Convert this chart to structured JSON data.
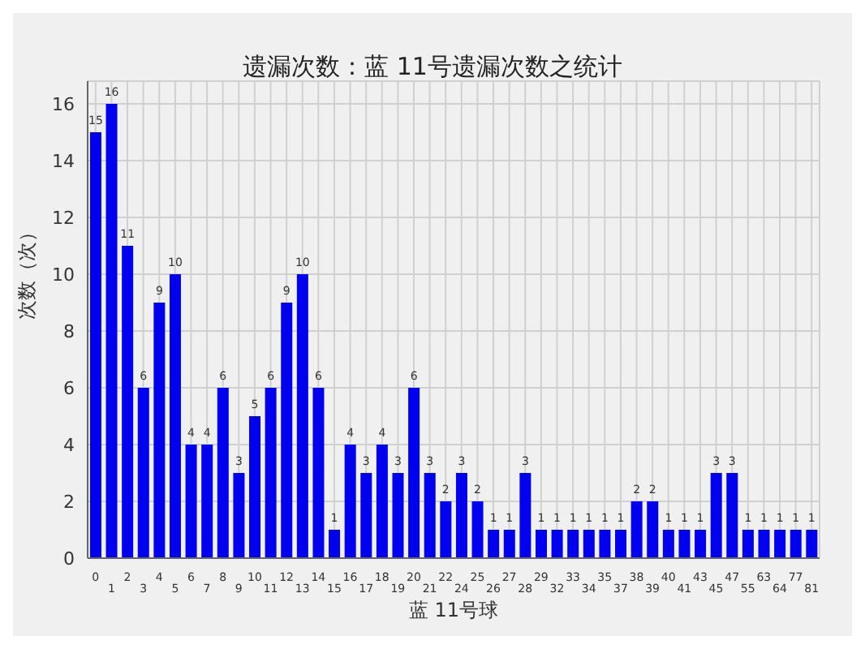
{
  "chart_data": {
    "type": "bar",
    "title": "遗漏次数：蓝 11号遗漏次数之统计",
    "xlabel": "蓝 11号球",
    "ylabel": "次数（次）",
    "categories": [
      "0",
      "1",
      "2",
      "3",
      "4",
      "5",
      "6",
      "7",
      "8",
      "9",
      "10",
      "11",
      "12",
      "13",
      "14",
      "15",
      "16",
      "17",
      "18",
      "19",
      "20",
      "21",
      "22",
      "24",
      "25",
      "26",
      "27",
      "28",
      "29",
      "32",
      "33",
      "34",
      "35",
      "37",
      "38",
      "39",
      "40",
      "41",
      "43",
      "45",
      "47",
      "55",
      "63",
      "64",
      "77",
      "81"
    ],
    "values": [
      15,
      16,
      11,
      6,
      9,
      10,
      4,
      4,
      6,
      3,
      5,
      6,
      9,
      10,
      6,
      1,
      4,
      3,
      4,
      3,
      6,
      3,
      2,
      3,
      2,
      1,
      1,
      3,
      1,
      1,
      1,
      1,
      1,
      1,
      2,
      2,
      1,
      1,
      1,
      3,
      3,
      1,
      1,
      1,
      1,
      1
    ],
    "color": "#0000ee",
    "ylim": [
      0,
      16.8
    ],
    "yticks": [
      0,
      2,
      4,
      6,
      8,
      10,
      12,
      14,
      16
    ],
    "grid": true,
    "data_labels": true
  }
}
